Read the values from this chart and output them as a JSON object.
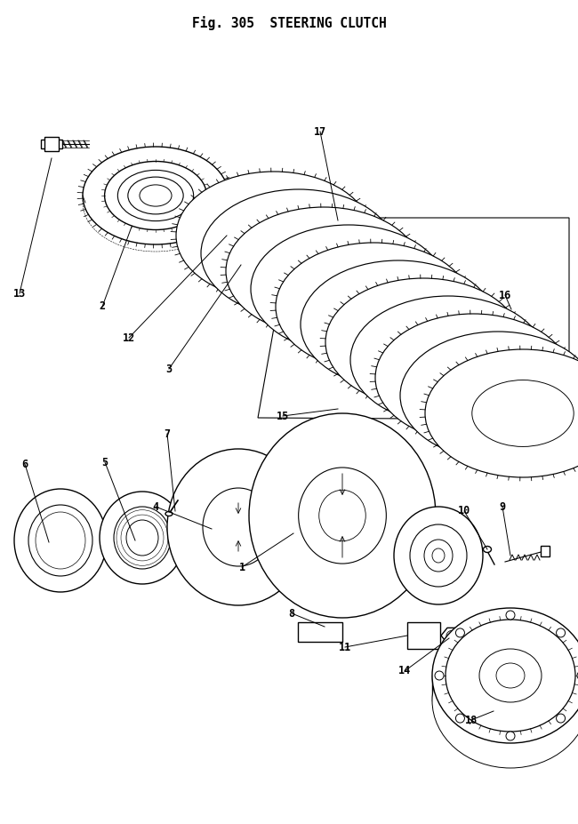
{
  "title_line1": "Fig. 305  STEERING CLUTCH",
  "bg_color": "#ffffff",
  "line_color": "#000000",
  "fig_width": 6.5,
  "fig_height": 9.27,
  "dpi": 100,
  "title_fontsize": 10.5,
  "label_fontsize": 8.5,
  "label_fontsize_bold": 9
}
